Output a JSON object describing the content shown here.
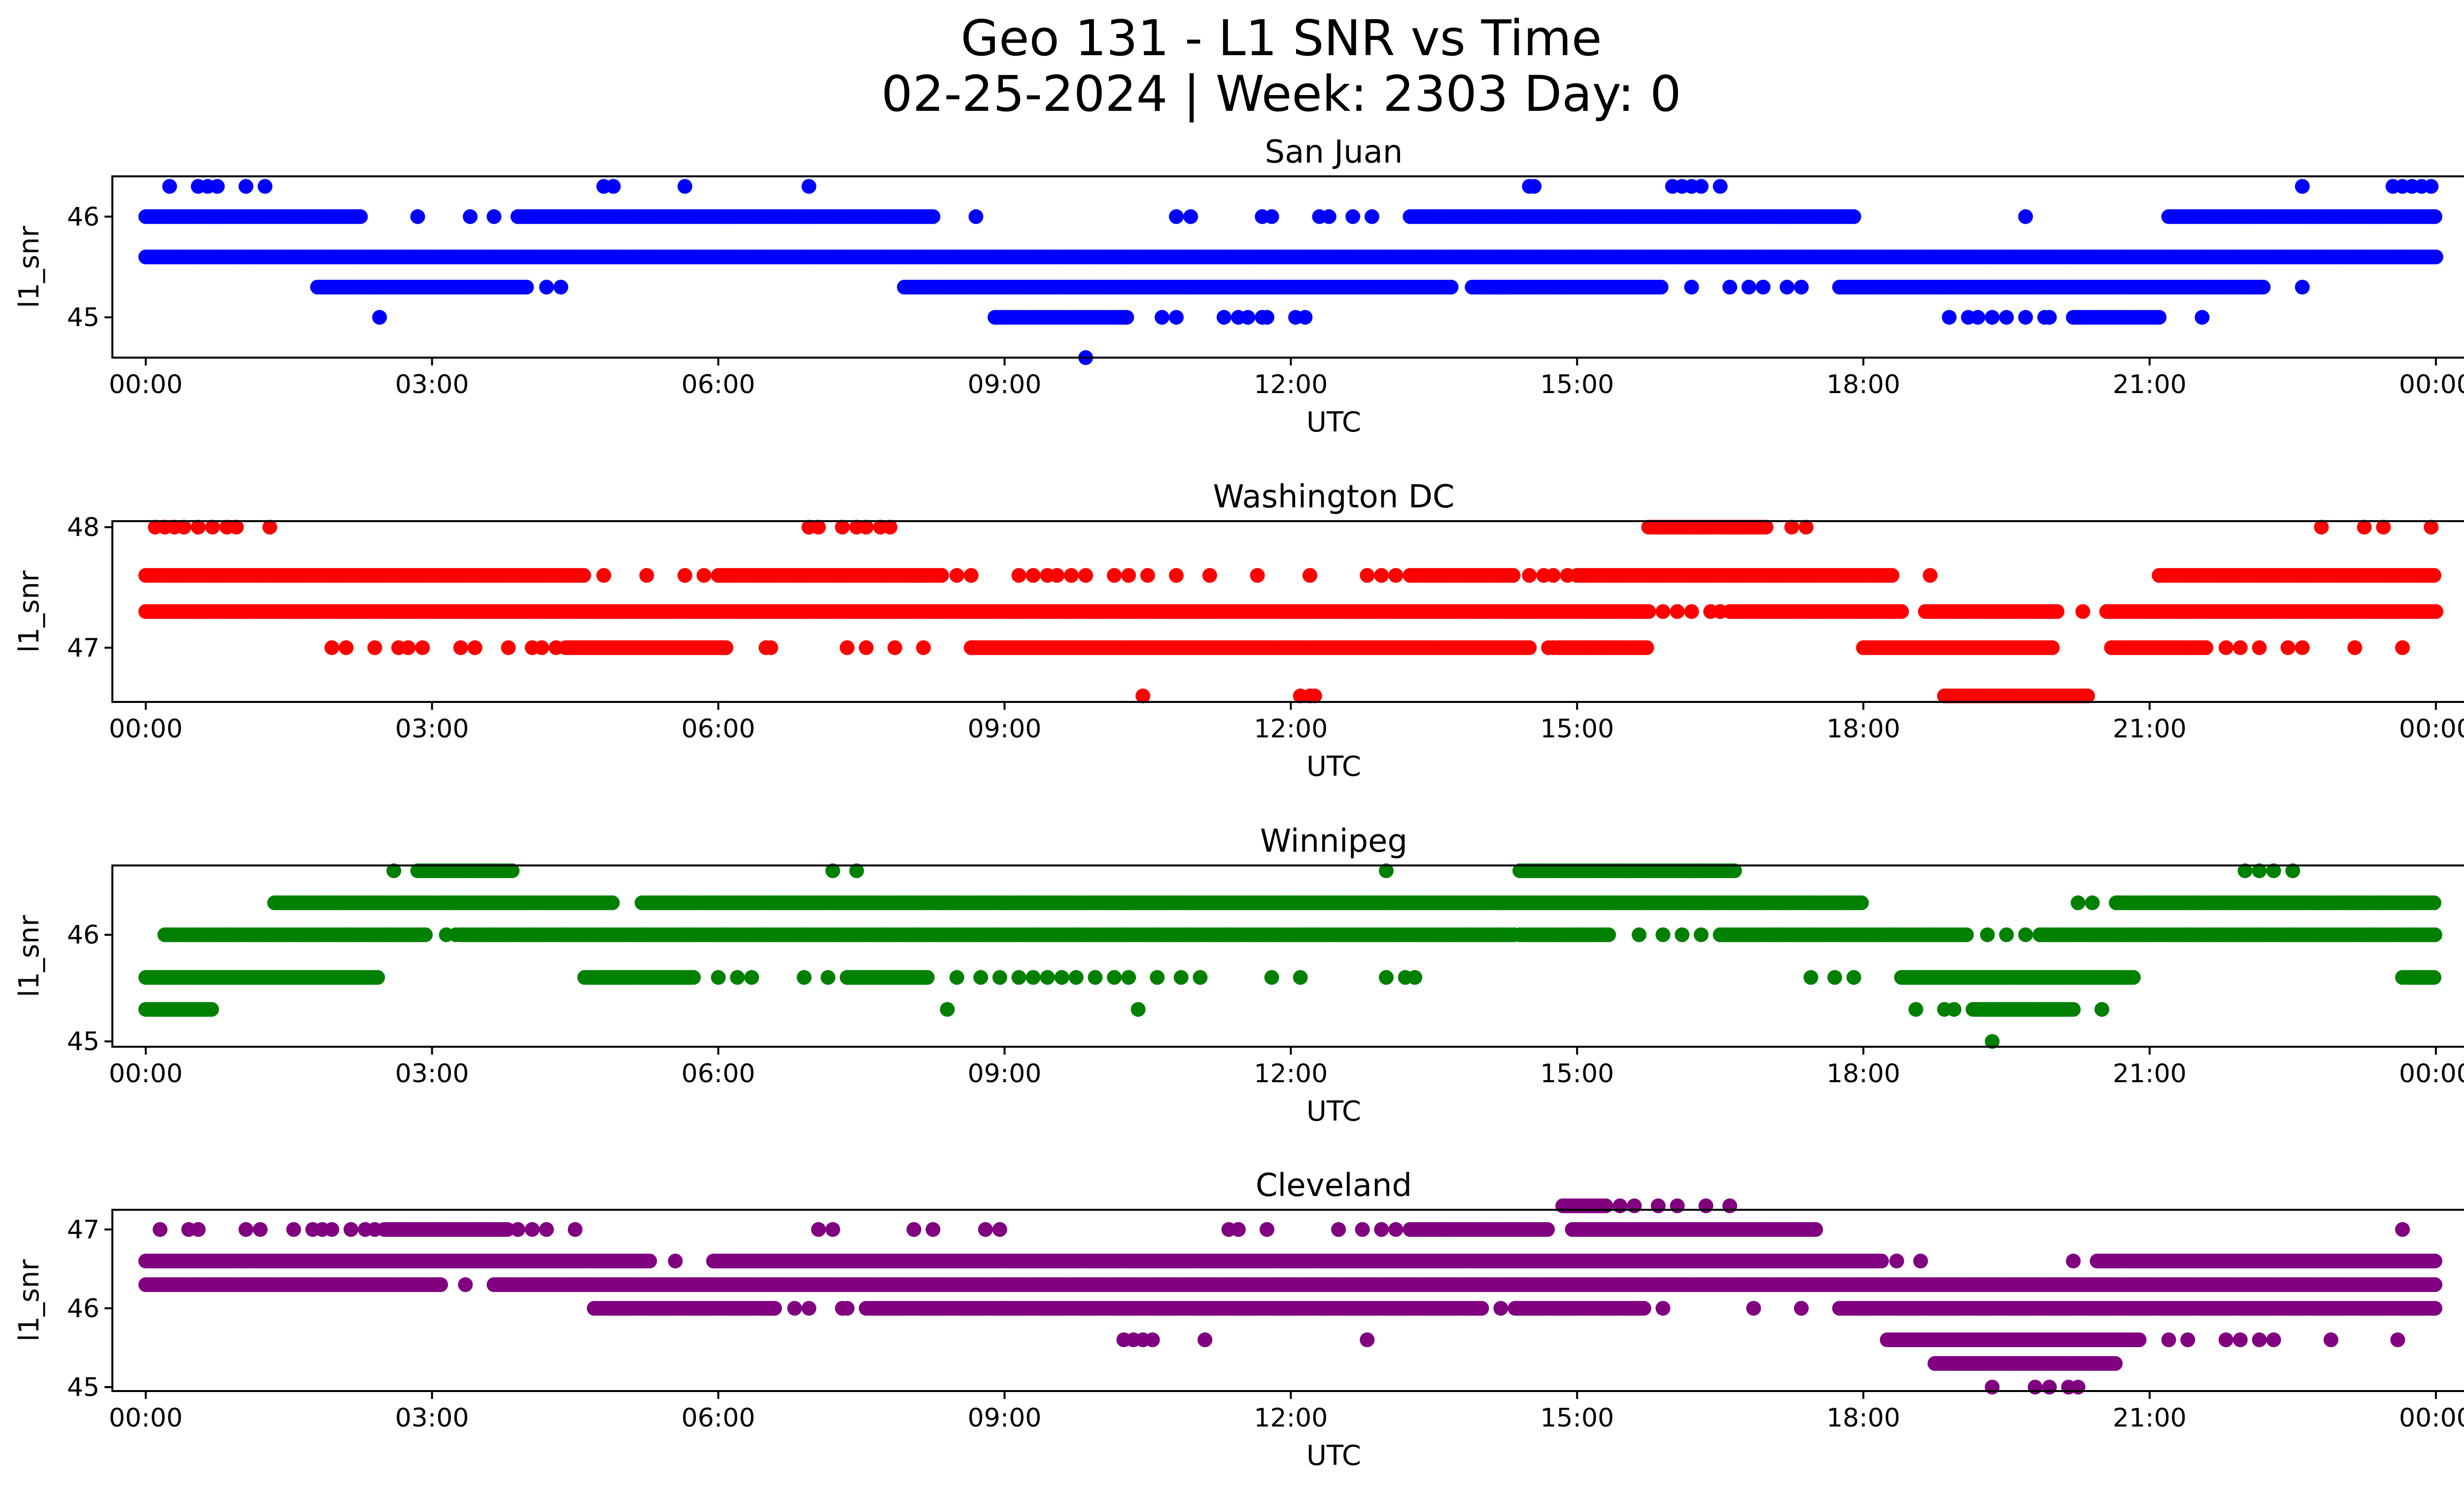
{
  "figure": {
    "title_line1": "Geo 131 - L1 SNR vs Time",
    "title_line2": "02-25-2024 | Week: 2303 Day: 0"
  },
  "chart_data": [
    {
      "type": "scatter",
      "title": "San Juan",
      "xlabel": "UTC",
      "ylabel": "l1_snr",
      "color": "#0000ff",
      "xlim_hours": [
        -0.35,
        25.25
      ],
      "ylim": [
        44.6,
        46.4
      ],
      "xticks": [
        "00:00",
        "03:00",
        "06:00",
        "09:00",
        "12:00",
        "15:00",
        "18:00",
        "21:00",
        "00:00"
      ],
      "yticks": [
        45,
        46
      ],
      "levels": [
        {
          "y": 46.3,
          "points": [
            0.25,
            0.55,
            0.65,
            0.75,
            1.05,
            1.25,
            4.8,
            4.9,
            5.65,
            6.95,
            14.5,
            14.55,
            16.0,
            16.1,
            16.2,
            16.3,
            16.5,
            22.6,
            23.55,
            23.65,
            23.75,
            23.85,
            23.95
          ]
        },
        {
          "y": 46.0,
          "ranges": [
            [
              0.0,
              2.25
            ],
            [
              3.9,
              8.25
            ],
            [
              13.25,
              17.9
            ],
            [
              21.2,
              24.0
            ]
          ],
          "points": [
            2.85,
            3.4,
            3.65,
            8.7,
            10.8,
            10.95,
            11.7,
            11.8,
            12.3,
            12.4,
            12.65,
            12.85,
            19.7
          ]
        },
        {
          "y": 45.6,
          "ranges": [
            [
              0.0,
              24.0
            ]
          ]
        },
        {
          "y": 45.3,
          "ranges": [
            [
              1.8,
              4.0
            ],
            [
              7.95,
              13.7
            ],
            [
              13.9,
              15.9
            ],
            [
              17.75,
              22.2
            ]
          ],
          "points": [
            4.2,
            4.35,
            14.0,
            14.15,
            14.3,
            16.2,
            16.6,
            16.8,
            16.95,
            17.2,
            17.35,
            22.6
          ]
        },
        {
          "y": 45.0,
          "ranges": [
            [
              8.9,
              10.3
            ],
            [
              20.2,
              21.1
            ]
          ],
          "points": [
            2.45,
            10.65,
            10.8,
            11.3,
            11.45,
            11.55,
            11.7,
            11.75,
            12.05,
            12.15,
            18.9,
            19.1,
            19.2,
            19.35,
            19.5,
            19.7,
            19.9,
            19.95,
            21.55
          ]
        },
        {
          "y": 44.6,
          "points": [
            9.85
          ]
        }
      ]
    },
    {
      "type": "scatter",
      "title": "Washington DC",
      "xlabel": "UTC",
      "ylabel": "l1_snr",
      "color": "#ff0000",
      "xlim_hours": [
        -0.35,
        25.25
      ],
      "ylim": [
        46.55,
        48.05
      ],
      "xticks": [
        "00:00",
        "03:00",
        "06:00",
        "09:00",
        "12:00",
        "15:00",
        "18:00",
        "21:00",
        "00:00"
      ],
      "yticks": [
        47,
        48
      ],
      "levels": [
        {
          "y": 48.0,
          "ranges": [
            [
              15.75,
              17.0
            ]
          ],
          "points": [
            0.1,
            0.2,
            0.3,
            0.4,
            0.55,
            0.7,
            0.85,
            0.95,
            1.3,
            6.95,
            7.05,
            7.3,
            7.45,
            7.55,
            7.7,
            7.8,
            17.25,
            17.4,
            22.8,
            23.25,
            23.45,
            23.95
          ]
        },
        {
          "y": 47.6,
          "ranges": [
            [
              0.0,
              4.6
            ],
            [
              6.0,
              8.35
            ],
            [
              13.25,
              14.35
            ],
            [
              15.0,
              18.3
            ],
            [
              21.1,
              24.0
            ]
          ],
          "points": [
            4.8,
            5.25,
            5.65,
            5.85,
            8.5,
            8.65,
            9.15,
            9.3,
            9.45,
            9.55,
            9.7,
            9.85,
            10.15,
            10.3,
            10.5,
            10.8,
            11.15,
            11.65,
            12.2,
            12.8,
            12.95,
            13.1,
            14.5,
            14.65,
            14.75,
            14.9,
            18.7
          ]
        },
        {
          "y": 47.3,
          "ranges": [
            [
              0.0,
              15.75
            ],
            [
              16.6,
              18.4
            ],
            [
              18.65,
              20.05
            ],
            [
              20.55,
              24.0
            ]
          ],
          "points": [
            15.9,
            16.05,
            16.2,
            16.4,
            16.5,
            19.95,
            20.3
          ]
        },
        {
          "y": 47.0,
          "ranges": [
            [
              4.4,
              6.1
            ],
            [
              8.65,
              14.5
            ],
            [
              14.8,
              15.75
            ],
            [
              18.0,
              20.0
            ],
            [
              20.6,
              21.6
            ]
          ],
          "points": [
            1.95,
            2.1,
            2.4,
            2.65,
            2.75,
            2.9,
            3.3,
            3.45,
            3.8,
            4.05,
            4.15,
            4.3,
            6.5,
            6.55,
            7.35,
            7.55,
            7.85,
            8.15,
            14.7,
            14.75,
            15.1,
            15.25,
            21.8,
            21.95,
            22.15,
            22.45,
            22.6,
            23.15,
            23.65
          ]
        },
        {
          "y": 46.6,
          "ranges": [
            [
              18.85,
              20.35
            ]
          ],
          "points": [
            10.45,
            12.1,
            12.2,
            12.25
          ]
        }
      ]
    },
    {
      "type": "scatter",
      "title": "Winnipeg",
      "xlabel": "UTC",
      "ylabel": "l1_snr",
      "color": "#008000",
      "xlim_hours": [
        -0.35,
        25.25
      ],
      "ylim": [
        44.95,
        46.65
      ],
      "xticks": [
        "00:00",
        "03:00",
        "06:00",
        "09:00",
        "12:00",
        "15:00",
        "18:00",
        "21:00",
        "00:00"
      ],
      "yticks": [
        45,
        46
      ],
      "levels": [
        {
          "y": 46.6,
          "ranges": [
            [
              2.85,
              3.85
            ],
            [
              14.4,
              16.65
            ]
          ],
          "points": [
            2.6,
            7.2,
            7.45,
            13.0,
            22.0,
            22.15,
            22.3,
            22.5
          ]
        },
        {
          "y": 46.3,
          "ranges": [
            [
              1.35,
              4.9
            ],
            [
              5.2,
              18.0
            ],
            [
              20.65,
              24.0
            ]
          ],
          "points": [
            20.25,
            20.4
          ]
        },
        {
          "y": 46.0,
          "ranges": [
            [
              0.2,
              2.95
            ],
            [
              3.3,
              14.35
            ],
            [
              14.4,
              15.35
            ],
            [
              16.5,
              19.1
            ],
            [
              19.85,
              24.0
            ]
          ],
          "points": [
            3.15,
            3.25,
            15.65,
            15.9,
            16.1,
            16.3,
            19.3,
            19.5,
            19.7
          ]
        },
        {
          "y": 45.6,
          "ranges": [
            [
              0.0,
              2.45
            ],
            [
              4.6,
              5.75
            ],
            [
              7.35,
              8.2
            ],
            [
              18.4,
              20.85
            ],
            [
              23.65,
              24.0
            ]
          ],
          "points": [
            6.0,
            6.2,
            6.35,
            6.9,
            7.15,
            8.5,
            8.75,
            8.95,
            9.15,
            9.3,
            9.45,
            9.6,
            9.75,
            9.95,
            10.15,
            10.3,
            10.6,
            10.85,
            11.05,
            11.8,
            12.1,
            13.0,
            13.2,
            13.3,
            17.45,
            17.7,
            17.9
          ]
        },
        {
          "y": 45.3,
          "ranges": [
            [
              0.0,
              0.7
            ],
            [
              19.15,
              20.2
            ]
          ],
          "points": [
            8.4,
            10.4,
            18.55,
            18.85,
            18.95,
            20.5
          ]
        },
        {
          "y": 45.0,
          "points": [
            19.35
          ]
        }
      ]
    },
    {
      "type": "scatter",
      "title": "Cleveland",
      "xlabel": "UTC",
      "ylabel": "l1_snr",
      "color": "#800080",
      "xlim_hours": [
        -0.35,
        25.25
      ],
      "ylim": [
        44.95,
        47.25
      ],
      "xticks": [
        "00:00",
        "03:00",
        "06:00",
        "09:00",
        "12:00",
        "15:00",
        "18:00",
        "21:00",
        "00:00"
      ],
      "yticks": [
        45,
        46,
        47
      ],
      "levels": [
        {
          "y": 47.3,
          "ranges": [
            [
              14.85,
              15.3
            ]
          ],
          "points": [
            15.45,
            15.6,
            15.85,
            16.05,
            16.35,
            16.6
          ]
        },
        {
          "y": 47.0,
          "ranges": [
            [
              2.5,
              3.8
            ],
            [
              13.25,
              14.7
            ],
            [
              14.95,
              17.5
            ]
          ],
          "points": [
            0.15,
            0.45,
            0.55,
            1.05,
            1.2,
            1.55,
            1.75,
            1.85,
            1.95,
            2.15,
            2.3,
            2.4,
            3.9,
            4.05,
            4.2,
            4.5,
            7.05,
            7.2,
            8.05,
            8.25,
            8.8,
            8.95,
            11.35,
            11.45,
            11.75,
            12.5,
            12.75,
            12.95,
            13.1,
            23.65
          ]
        },
        {
          "y": 46.6,
          "ranges": [
            [
              0.0,
              5.3
            ],
            [
              5.95,
              18.2
            ],
            [
              20.45,
              24.0
            ]
          ],
          "points": [
            5.55,
            18.35,
            18.6,
            20.2
          ]
        },
        {
          "y": 46.3,
          "ranges": [
            [
              0.0,
              3.1
            ],
            [
              3.65,
              24.0
            ]
          ],
          "points": [
            3.35
          ]
        },
        {
          "y": 46.0,
          "ranges": [
            [
              4.7,
              6.6
            ],
            [
              7.55,
              14.0
            ],
            [
              14.35,
              15.7
            ],
            [
              17.75,
              24.0
            ]
          ],
          "points": [
            6.8,
            6.95,
            7.3,
            7.35,
            14.2,
            15.65,
            15.9,
            16.85,
            17.35
          ]
        },
        {
          "y": 45.6,
          "ranges": [
            [
              18.25,
              20.9
            ]
          ],
          "points": [
            10.25,
            10.35,
            10.45,
            10.55,
            11.1,
            12.8,
            21.2,
            21.4,
            21.8,
            21.95,
            22.15,
            22.3,
            22.9,
            23.6
          ]
        },
        {
          "y": 45.3,
          "ranges": [
            [
              18.75,
              20.65
            ]
          ],
          "points": [
            19.05,
            19.15,
            19.25
          ]
        },
        {
          "y": 45.0,
          "points": [
            19.35,
            19.8,
            19.95,
            20.15,
            20.25
          ]
        }
      ]
    }
  ]
}
